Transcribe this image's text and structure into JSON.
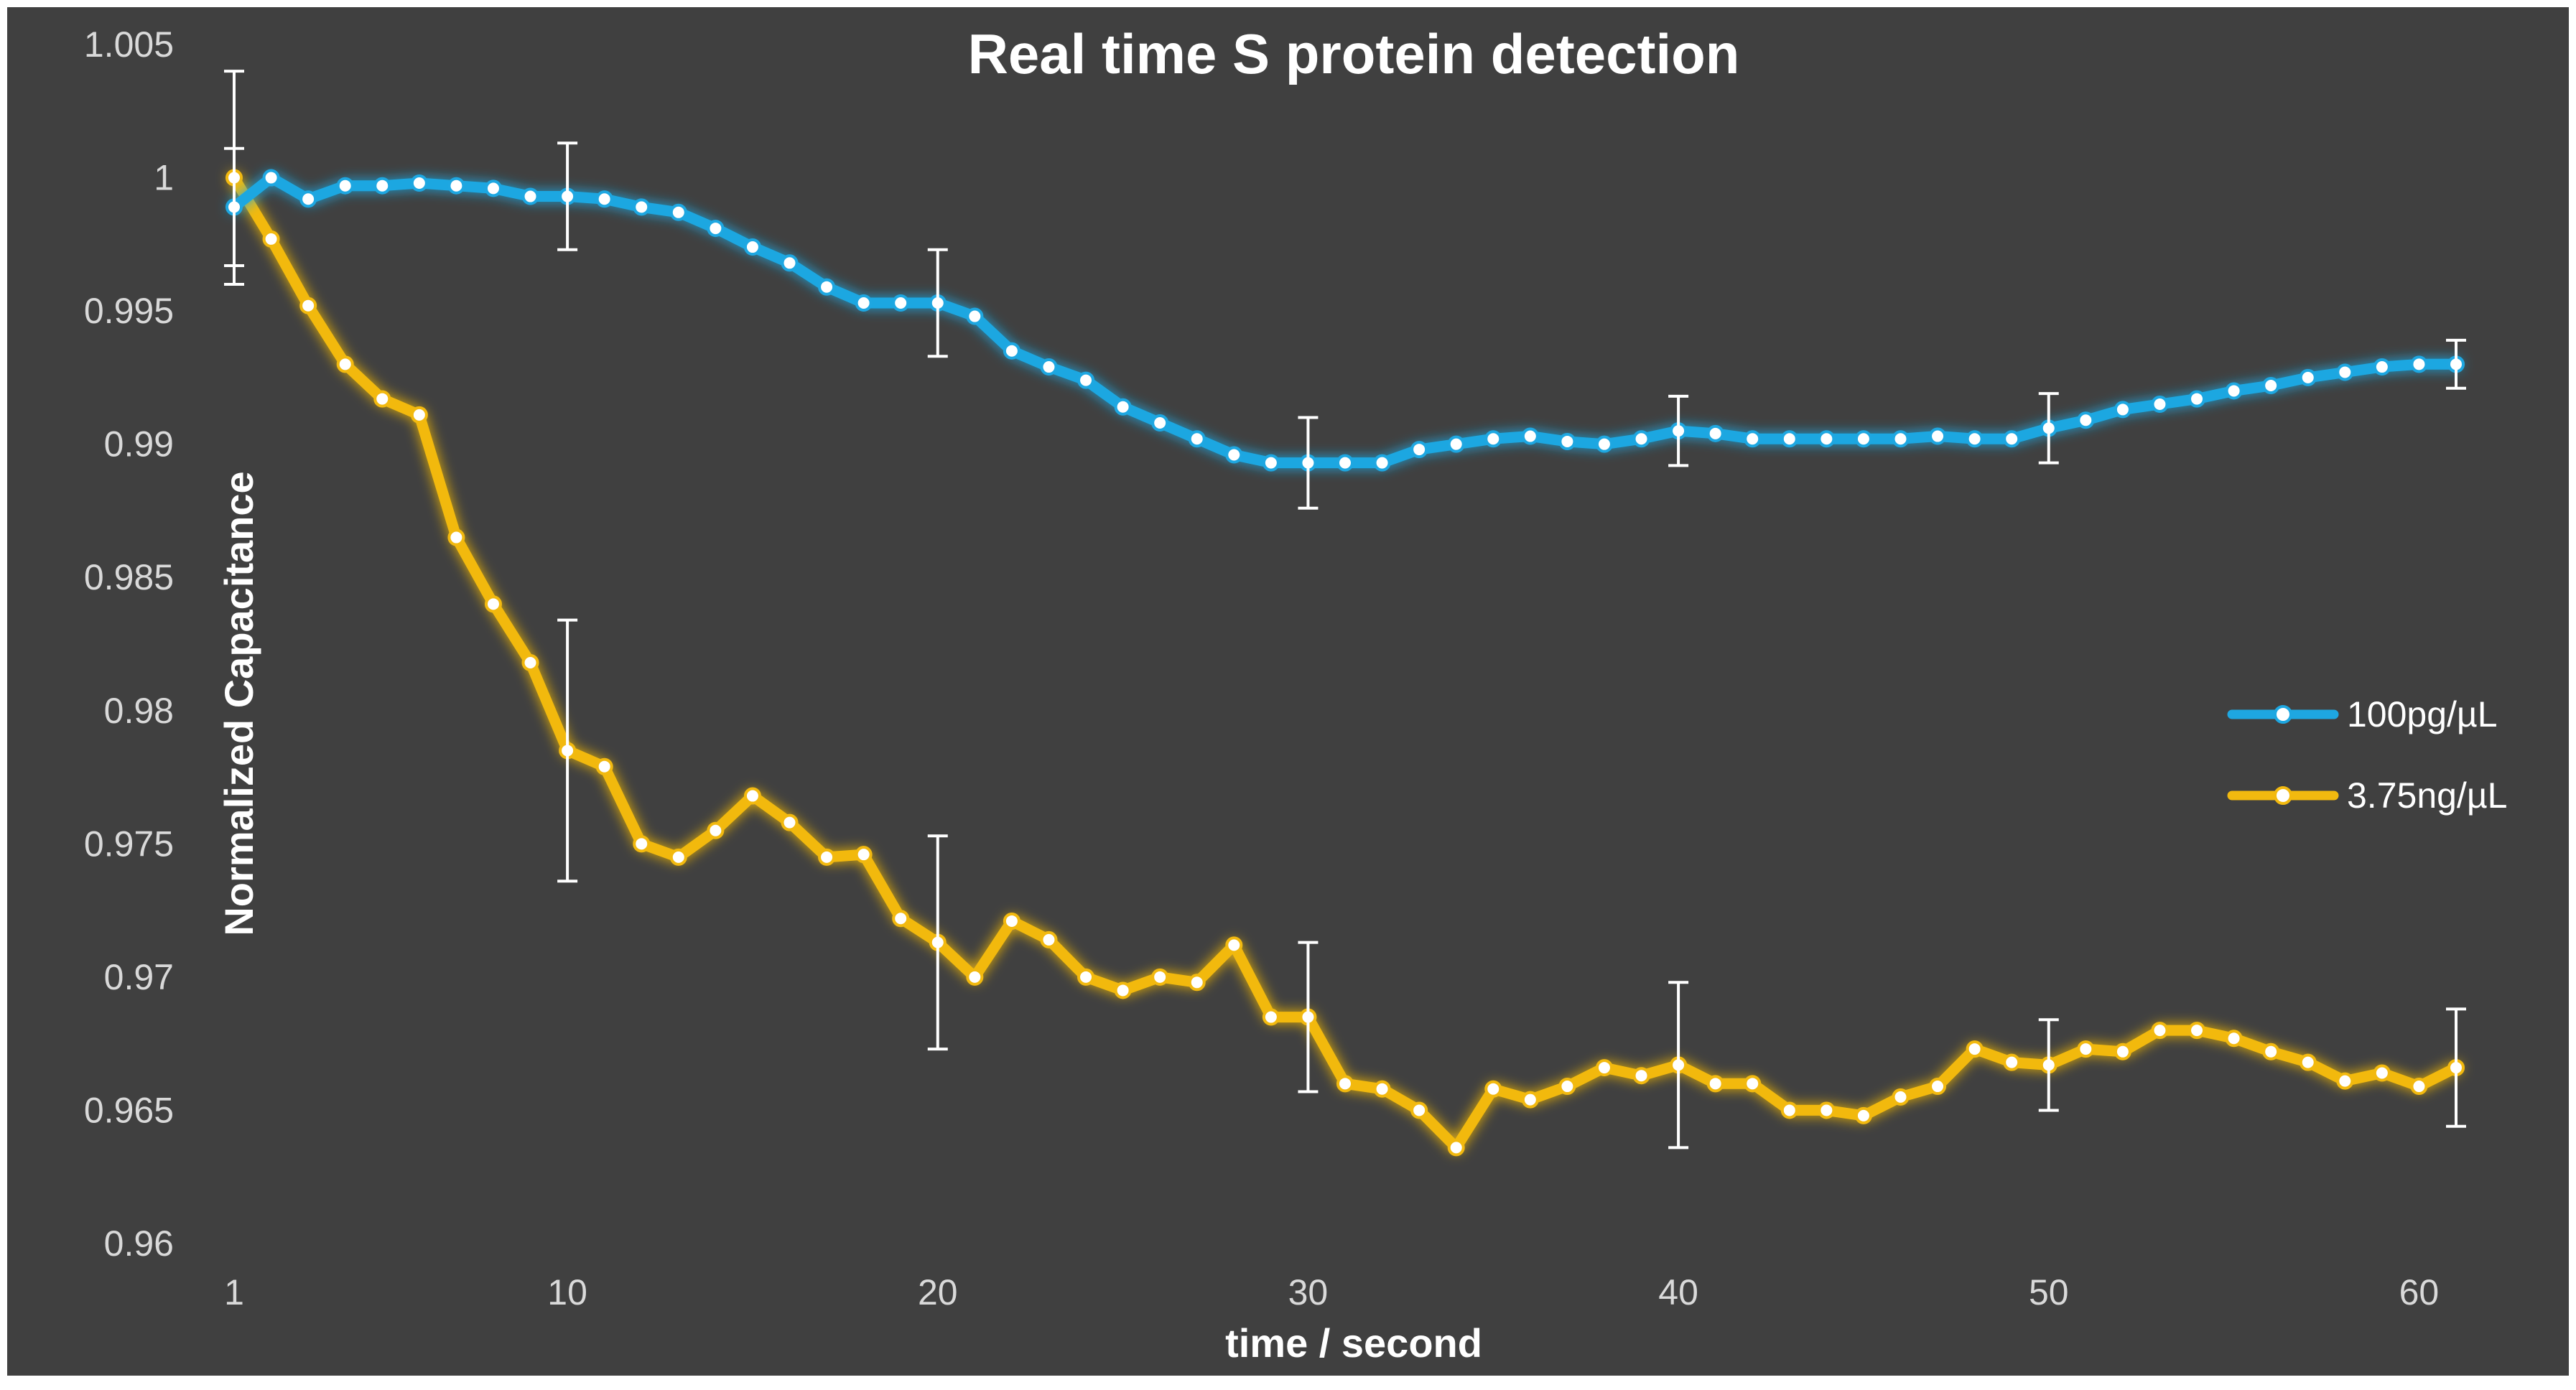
{
  "chart_data": {
    "type": "line",
    "title": "Real time S protein detection",
    "xlabel": "time / second",
    "ylabel": "Normalized Capacitance",
    "xlim": [
      1,
      61
    ],
    "ylim": [
      0.96,
      1.005
    ],
    "x_ticks": [
      1,
      10,
      20,
      30,
      40,
      50,
      60
    ],
    "x_tick_labels": [
      "1",
      "10",
      "20",
      "30",
      "40",
      "50",
      "60"
    ],
    "y_ticks": [
      0.96,
      0.965,
      0.97,
      0.975,
      0.98,
      0.985,
      0.99,
      0.995,
      1,
      1.005
    ],
    "y_tick_labels": [
      "0.96",
      "0.965",
      "0.97",
      "0.975",
      "0.98",
      "0.985",
      "0.99",
      "0.995",
      "1",
      "1.005"
    ],
    "grid": false,
    "legend_position": "right",
    "x": [
      1,
      2,
      3,
      4,
      5,
      6,
      7,
      8,
      9,
      10,
      11,
      12,
      13,
      14,
      15,
      16,
      17,
      18,
      19,
      20,
      21,
      22,
      23,
      24,
      25,
      26,
      27,
      28,
      29,
      30,
      31,
      32,
      33,
      34,
      35,
      36,
      37,
      38,
      39,
      40,
      41,
      42,
      43,
      44,
      45,
      46,
      47,
      48,
      49,
      50,
      51,
      52,
      53,
      54,
      55,
      56,
      57,
      58,
      59,
      60,
      61
    ],
    "series": [
      {
        "name": "100pg/µL",
        "color": "#1ea7e1",
        "values": [
          0.9989,
          1.0,
          0.9992,
          0.9997,
          0.9997,
          0.9998,
          0.9997,
          0.9996,
          0.9993,
          0.9993,
          0.9992,
          0.9989,
          0.9987,
          0.9981,
          0.9974,
          0.9968,
          0.9959,
          0.9953,
          0.9953,
          0.9953,
          0.9948,
          0.9935,
          0.9929,
          0.9924,
          0.9914,
          0.9908,
          0.9902,
          0.9896,
          0.9893,
          0.9893,
          0.9893,
          0.9893,
          0.9898,
          0.99,
          0.9902,
          0.9903,
          0.9901,
          0.99,
          0.9902,
          0.9905,
          0.9904,
          0.9902,
          0.9902,
          0.9902,
          0.9902,
          0.9902,
          0.9903,
          0.9902,
          0.9902,
          0.9906,
          0.9909,
          0.9913,
          0.9915,
          0.9917,
          0.992,
          0.9922,
          0.9925,
          0.9927,
          0.9929,
          0.993,
          0.993
        ],
        "error_bars": [
          {
            "x": 1,
            "err": 0.0022
          },
          {
            "x": 10,
            "err": 0.002
          },
          {
            "x": 20,
            "err": 0.002
          },
          {
            "x": 30,
            "err": 0.0017
          },
          {
            "x": 40,
            "err": 0.0013
          },
          {
            "x": 50,
            "err": 0.0013
          },
          {
            "x": 61,
            "err": 0.0009
          }
        ]
      },
      {
        "name": "3.75ng/µL",
        "color": "#f2b90f",
        "values": [
          1.0,
          0.9977,
          0.9952,
          0.993,
          0.9917,
          0.9911,
          0.9865,
          0.984,
          0.9818,
          0.9785,
          0.9779,
          0.975,
          0.9745,
          0.9755,
          0.9768,
          0.9758,
          0.9745,
          0.9746,
          0.9722,
          0.9713,
          0.97,
          0.9721,
          0.9714,
          0.97,
          0.9695,
          0.97,
          0.9698,
          0.9712,
          0.9685,
          0.9685,
          0.966,
          0.9658,
          0.965,
          0.9636,
          0.9658,
          0.9654,
          0.9659,
          0.9666,
          0.9663,
          0.9667,
          0.966,
          0.966,
          0.965,
          0.965,
          0.9648,
          0.9655,
          0.9659,
          0.9673,
          0.9668,
          0.9667,
          0.9673,
          0.9672,
          0.968,
          0.968,
          0.9677,
          0.9672,
          0.9668,
          0.9661,
          0.9664,
          0.9659,
          0.9666
        ],
        "error_bars": [
          {
            "x": 1,
            "err": 0.004
          },
          {
            "x": 10,
            "err": 0.0049
          },
          {
            "x": 20,
            "err": 0.004
          },
          {
            "x": 30,
            "err": 0.0028
          },
          {
            "x": 40,
            "err": 0.0031
          },
          {
            "x": 50,
            "err": 0.0017
          },
          {
            "x": 61,
            "err": 0.0022
          }
        ]
      }
    ]
  }
}
